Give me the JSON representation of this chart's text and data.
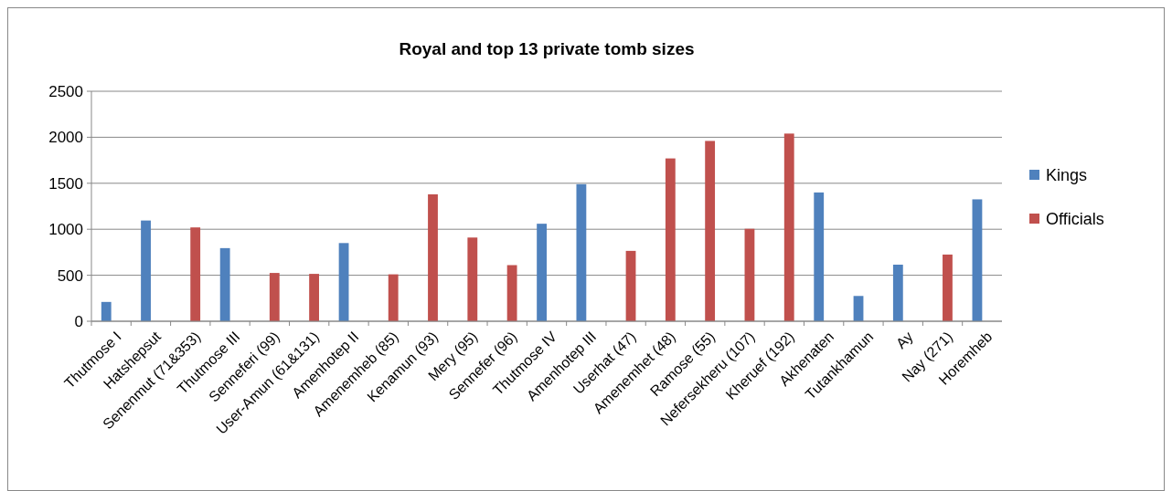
{
  "chart_data": {
    "type": "bar",
    "title": "Royal and top 13 private tomb sizes",
    "categories": [
      "Thutmose I",
      "Hatshepsut",
      "Senenmut (71&353)",
      "Thutmose III",
      "Senneferi (99)",
      "User-Amun (61&131)",
      "Amenhotep II",
      "Amenemheb (85)",
      "Kenamun (93)",
      "Mery (95)",
      "Sennefer (96)",
      "Thutmose IV",
      "Amenhotep III",
      "Userhat (47)",
      "Amenemhet (48)",
      "Ramose (55)",
      "Nefersekheru (107)",
      "Kheruef (192)",
      "Akhenaten",
      "Tutankhamun",
      "Ay",
      "Nay (271)",
      "Horemheb"
    ],
    "series": [
      {
        "name": "Kings",
        "color": "#4f81bd",
        "values": [
          210,
          1095,
          null,
          795,
          null,
          null,
          850,
          null,
          null,
          null,
          null,
          1060,
          1490,
          null,
          null,
          null,
          null,
          null,
          1400,
          275,
          615,
          null,
          1325
        ]
      },
      {
        "name": "Officials",
        "color": "#c0504d",
        "values": [
          null,
          null,
          1020,
          null,
          525,
          515,
          null,
          510,
          1380,
          910,
          610,
          null,
          null,
          765,
          1770,
          1960,
          1005,
          2040,
          null,
          null,
          null,
          725,
          null
        ]
      }
    ],
    "ylim": [
      0,
      2500
    ],
    "yticks": [
      0,
      500,
      1000,
      1500,
      2000,
      2500
    ],
    "grid": "y",
    "legend": "right"
  }
}
